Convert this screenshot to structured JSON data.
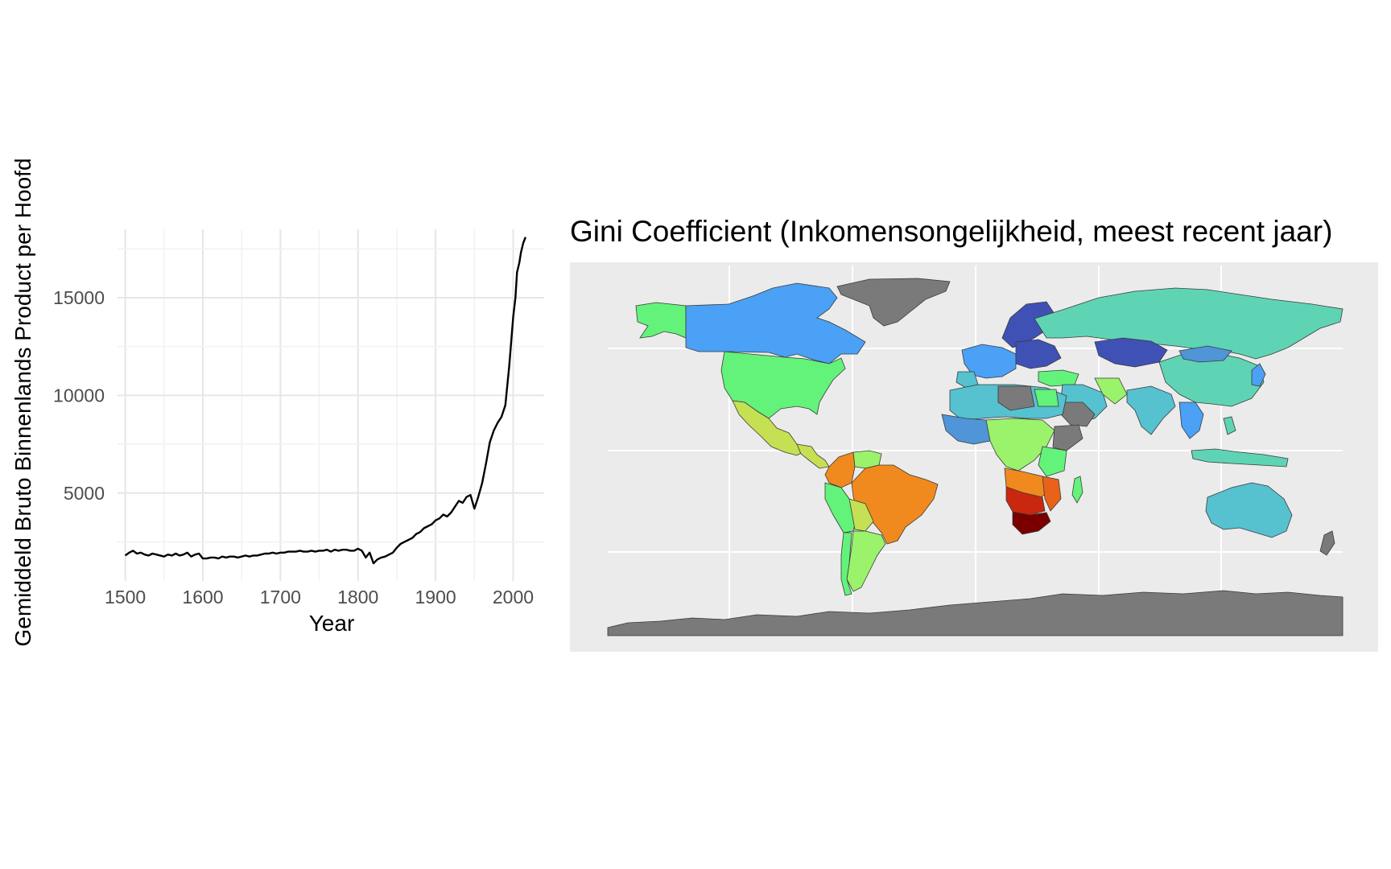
{
  "chart_data": [
    {
      "type": "line",
      "title": "",
      "xlabel": "Year",
      "ylabel": "Gemiddeld Bruto Binnenlands Product per Hoofd",
      "xlim": [
        1490,
        2040
      ],
      "ylim": [
        500,
        18500
      ],
      "x_ticks": [
        "1500",
        "1600",
        "1700",
        "1800",
        "1900",
        "2000"
      ],
      "y_ticks": [
        "5000",
        "10000",
        "15000"
      ],
      "grid": true,
      "line_color": "#000000",
      "x": [
        1500,
        1505,
        1510,
        1515,
        1520,
        1525,
        1530,
        1535,
        1540,
        1545,
        1550,
        1555,
        1560,
        1565,
        1570,
        1575,
        1580,
        1585,
        1590,
        1595,
        1600,
        1605,
        1610,
        1615,
        1620,
        1625,
        1630,
        1635,
        1640,
        1645,
        1650,
        1655,
        1660,
        1665,
        1670,
        1675,
        1680,
        1685,
        1690,
        1695,
        1700,
        1705,
        1710,
        1715,
        1720,
        1725,
        1730,
        1735,
        1740,
        1745,
        1750,
        1755,
        1760,
        1765,
        1770,
        1775,
        1780,
        1785,
        1790,
        1795,
        1800,
        1805,
        1810,
        1815,
        1820,
        1825,
        1830,
        1835,
        1840,
        1845,
        1850,
        1855,
        1860,
        1865,
        1870,
        1875,
        1880,
        1885,
        1890,
        1895,
        1900,
        1905,
        1910,
        1915,
        1920,
        1925,
        1930,
        1935,
        1940,
        1945,
        1950,
        1955,
        1960,
        1965,
        1970,
        1975,
        1980,
        1985,
        1990,
        1995,
        2000,
        2003,
        2005,
        2008,
        2010,
        2013,
        2016
      ],
      "values": [
        1800,
        1950,
        2050,
        1900,
        1950,
        1850,
        1800,
        1900,
        1850,
        1800,
        1750,
        1850,
        1800,
        1900,
        1800,
        1850,
        1950,
        1750,
        1850,
        1900,
        1650,
        1650,
        1700,
        1700,
        1650,
        1750,
        1700,
        1750,
        1750,
        1700,
        1750,
        1800,
        1750,
        1800,
        1800,
        1850,
        1900,
        1900,
        1950,
        1900,
        1950,
        1950,
        2000,
        2000,
        2000,
        2050,
        2000,
        2000,
        2050,
        2000,
        2050,
        2050,
        2100,
        2000,
        2100,
        2050,
        2100,
        2100,
        2050,
        2050,
        2150,
        2050,
        1700,
        1950,
        1400,
        1600,
        1700,
        1750,
        1850,
        1950,
        2200,
        2400,
        2500,
        2600,
        2700,
        2900,
        3000,
        3200,
        3300,
        3400,
        3600,
        3700,
        3900,
        3800,
        4000,
        4300,
        4600,
        4500,
        4800,
        4900,
        4200,
        4800,
        5500,
        6500,
        7600,
        8200,
        8600,
        8900,
        9500,
        11500,
        14000,
        15000,
        16300,
        16800,
        17300,
        17800,
        18100
      ]
    },
    {
      "type": "choropleth",
      "title": "Gini Coefficient (Inkomensongelijkheid, meest recent jaar)",
      "subject": "Gini Coefficient per land",
      "missing_color": "#7a7a7a",
      "panel_background": "#ebebeb",
      "colors": {
        "darkest_blue": "#3f51b5",
        "blue": "#4aa1f5",
        "steel_blue": "#4f95d8",
        "teal": "#56c1cf",
        "sea_green": "#5fd4b5",
        "green": "#63f37a",
        "light_green": "#9bf26b",
        "yellow_green": "#c5e052",
        "orange": "#f08a1e",
        "dark_orange": "#e8621a",
        "red": "#c9280e",
        "dark_red": "#7a0000"
      }
    }
  ]
}
